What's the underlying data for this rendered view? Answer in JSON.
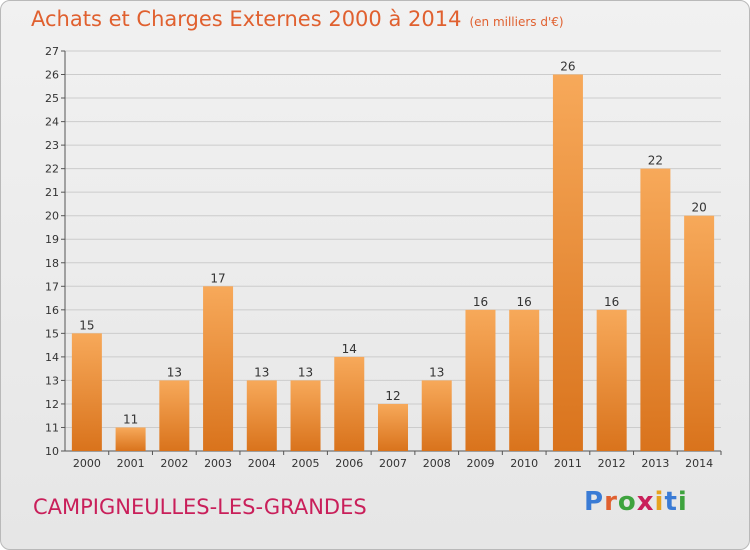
{
  "title": "Achats et Charges Externes 2000 à 2014",
  "subtitle": "(en milliers d'€)",
  "commune": "CAMPIGNEULLES-LES-GRANDES",
  "logo": {
    "letters": [
      "P",
      "r",
      "o",
      "x",
      "i",
      "t",
      "i"
    ],
    "colors": [
      "#3a7bd5",
      "#e0602f",
      "#3ea33e",
      "#c91f5a",
      "#e6a21e",
      "#3a7bd5",
      "#3ea33e"
    ]
  },
  "colors": {
    "bar_top": "#f7a95a",
    "bar_bottom": "#d9731c",
    "grid": "#cccccc",
    "title": "#e0602f",
    "commune": "#c91f5a"
  },
  "chart_data": {
    "type": "bar",
    "title": "Achats et Charges Externes 2000 à 2014",
    "subtitle": "(en milliers d'€)",
    "categories": [
      "2000",
      "2001",
      "2002",
      "2003",
      "2004",
      "2005",
      "2006",
      "2007",
      "2008",
      "2009",
      "2010",
      "2011",
      "2012",
      "2013",
      "2014"
    ],
    "values": [
      15,
      11,
      13,
      17,
      13,
      13,
      14,
      12,
      13,
      16,
      16,
      26,
      16,
      22,
      20
    ],
    "ylim": [
      10,
      27
    ],
    "yticks": [
      10,
      11,
      12,
      13,
      14,
      15,
      16,
      17,
      18,
      19,
      20,
      21,
      22,
      23,
      24,
      25,
      26,
      27
    ],
    "grid": true,
    "xlabel": "",
    "ylabel": ""
  }
}
